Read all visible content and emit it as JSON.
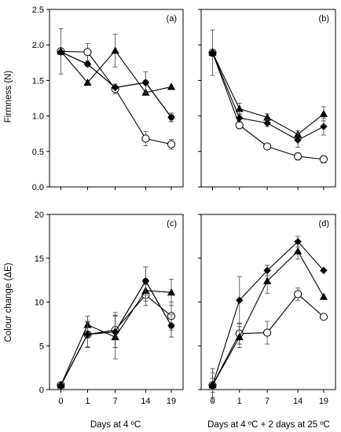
{
  "figure": {
    "ylabel_top": "Firmness (N)",
    "ylabel_bottom": "Colour change  (ΔE)",
    "xlabel_left": "Days at 4 ºC",
    "xlabel_right": "Days at 4 ºC + 2 days at 25 ºC"
  },
  "chart_data": [
    {
      "id": "a",
      "type": "line",
      "panel_label": "(a)",
      "x_categories": [
        "0",
        "1",
        "7",
        "14",
        "19"
      ],
      "ylim": [
        0,
        2.5
      ],
      "yticks": [
        "0.0",
        "0.5",
        "1.0",
        "1.5",
        "2.0",
        "2.5"
      ],
      "series": [
        {
          "marker": "circle",
          "fill": "#000000",
          "values": [
            1.9,
            1.73,
            1.4,
            1.47,
            0.98
          ],
          "err": [
            0.0,
            0.0,
            0.0,
            0.0,
            0.06
          ]
        },
        {
          "marker": "circle",
          "fill": "#ffffff",
          "values": [
            1.91,
            1.9,
            1.38,
            0.68,
            0.6
          ],
          "err": [
            0.32,
            0.12,
            0.07,
            0.1,
            0.07
          ]
        },
        {
          "marker": "triangle",
          "fill": "#000000",
          "values": [
            1.91,
            1.47,
            1.92,
            1.33,
            1.41
          ],
          "err": [
            0.0,
            0.0,
            0.23,
            0.0,
            0.0
          ]
        },
        {
          "marker": "diamond",
          "fill": "#000000",
          "values": [
            1.9,
            1.73,
            1.4,
            1.47,
            0.98
          ],
          "err": [
            0.0,
            0.0,
            0.0,
            0.15,
            0.06
          ]
        }
      ]
    },
    {
      "id": "b",
      "type": "line",
      "panel_label": "(b)",
      "x_categories": [
        "0",
        "1",
        "7",
        "14",
        "19"
      ],
      "ylim": [
        0,
        2.5
      ],
      "yticks": [
        "0.0",
        "0.5",
        "1.0",
        "1.5",
        "2.0",
        "2.5"
      ],
      "series": [
        {
          "marker": "circle",
          "fill": "#ffffff",
          "values": [
            1.89,
            0.87,
            0.57,
            0.43,
            0.39
          ],
          "err": [
            0.32,
            0.05,
            0.03,
            0.05,
            0.05
          ]
        },
        {
          "marker": "triangle",
          "fill": "#000000",
          "values": [
            1.89,
            1.1,
            0.98,
            0.74,
            1.03
          ],
          "err": [
            0.0,
            0.08,
            0.05,
            0.05,
            0.1
          ]
        },
        {
          "marker": "diamond",
          "fill": "#000000",
          "values": [
            1.89,
            0.97,
            0.9,
            0.66,
            0.85
          ],
          "err": [
            0.0,
            0.06,
            0.05,
            0.1,
            0.12
          ]
        }
      ]
    },
    {
      "id": "c",
      "type": "line",
      "panel_label": "(c)",
      "x_categories": [
        "0",
        "1",
        "7",
        "14",
        "19"
      ],
      "ylim": [
        0,
        20
      ],
      "yticks": [
        "0",
        "5",
        "10",
        "15",
        "20"
      ],
      "series": [
        {
          "marker": "circle",
          "fill": "#000000",
          "values": [
            0.5,
            6.3,
            6.6,
            12.4,
            7.3
          ],
          "err": [
            0.0,
            1.5,
            1.8,
            1.6,
            1.3
          ]
        },
        {
          "marker": "circle",
          "fill": "#ffffff",
          "values": [
            0.5,
            6.3,
            6.8,
            10.8,
            8.4
          ],
          "err": [
            0.0,
            1.4,
            2.0,
            1.2,
            1.6
          ]
        },
        {
          "marker": "triangle",
          "fill": "#000000",
          "values": [
            0.5,
            7.4,
            6.0,
            11.3,
            11.1
          ],
          "err": [
            0.0,
            1.0,
            2.5,
            1.2,
            1.5
          ]
        },
        {
          "marker": "diamond",
          "fill": "#000000",
          "values": [
            0.5,
            6.3,
            6.6,
            12.4,
            7.3
          ],
          "err": [
            0.0,
            1.5,
            1.8,
            1.6,
            1.3
          ]
        }
      ]
    },
    {
      "id": "d",
      "type": "line",
      "panel_label": "(d)",
      "x_categories": [
        "0",
        "1",
        "7",
        "14",
        "19"
      ],
      "ylim": [
        0,
        20
      ],
      "yticks": [
        "0",
        "5",
        "10",
        "15",
        "20"
      ],
      "series": [
        {
          "marker": "circle",
          "fill": "#ffffff",
          "values": [
            0.5,
            6.4,
            6.5,
            10.9,
            8.3
          ],
          "err": [
            1.4,
            1.2,
            1.3,
            0.7,
            0.0
          ]
        },
        {
          "marker": "triangle",
          "fill": "#000000",
          "values": [
            0.5,
            6.0,
            12.4,
            15.8,
            10.6
          ],
          "err": [
            0.8,
            1.2,
            1.4,
            0.9,
            0.0
          ]
        },
        {
          "marker": "diamond",
          "fill": "#000000",
          "values": [
            0.5,
            10.2,
            13.6,
            16.9,
            13.6
          ],
          "err": [
            1.9,
            2.7,
            0.6,
            0.6,
            0.0
          ]
        }
      ]
    }
  ]
}
